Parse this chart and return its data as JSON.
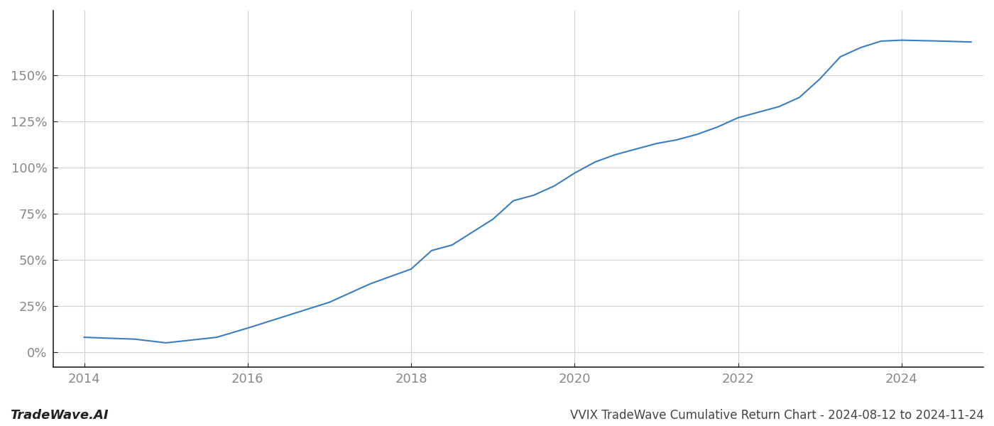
{
  "x_values": [
    2014.0,
    2014.62,
    2015.0,
    2015.62,
    2016.0,
    2016.5,
    2017.0,
    2017.5,
    2018.0,
    2018.25,
    2018.5,
    2018.75,
    2019.0,
    2019.25,
    2019.5,
    2019.75,
    2020.0,
    2020.25,
    2020.5,
    2020.75,
    2021.0,
    2021.25,
    2021.5,
    2021.75,
    2022.0,
    2022.25,
    2022.5,
    2022.75,
    2023.0,
    2023.25,
    2023.5,
    2023.75,
    2024.0,
    2024.5,
    2024.85
  ],
  "y_values": [
    8.0,
    7.0,
    5.0,
    8.0,
    13.0,
    20.0,
    27.0,
    37.0,
    45.0,
    55.0,
    58.0,
    65.0,
    72.0,
    82.0,
    85.0,
    90.0,
    97.0,
    103.0,
    107.0,
    110.0,
    113.0,
    115.0,
    118.0,
    122.0,
    127.0,
    130.0,
    133.0,
    138.0,
    148.0,
    160.0,
    165.0,
    168.5,
    169.0,
    168.5,
    168.0
  ],
  "line_color": "#3a7ebf",
  "line_width": 1.5,
  "title": "VVIX TradeWave Cumulative Return Chart - 2024-08-12 to 2024-11-24",
  "xlim": [
    2013.62,
    2025.0
  ],
  "ylim": [
    -8,
    185
  ],
  "xticks": [
    2014,
    2016,
    2018,
    2020,
    2022,
    2024
  ],
  "yticks": [
    0,
    25,
    50,
    75,
    100,
    125,
    150
  ],
  "background_color": "#ffffff",
  "grid_color": "#d0d0d0",
  "watermark_text": "TradeWave.AI",
  "watermark_fontsize": 13,
  "title_fontsize": 12,
  "tick_fontsize": 13,
  "tick_color": "#888888",
  "spine_color": "#222222"
}
